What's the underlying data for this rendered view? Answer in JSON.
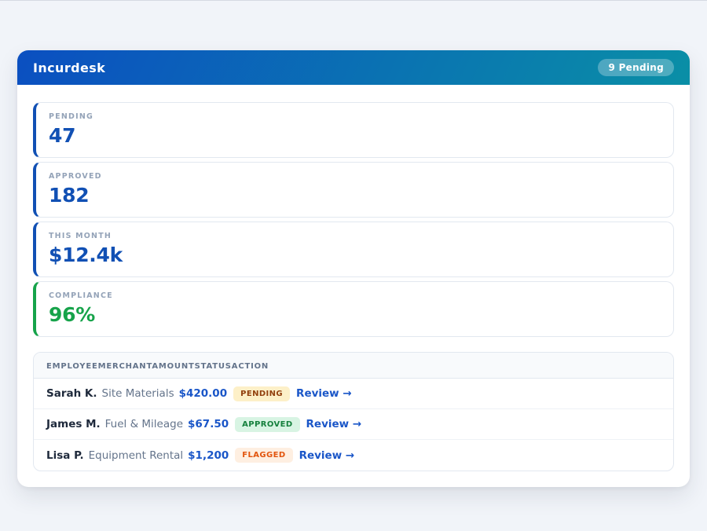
{
  "header": {
    "title": "Incurdesk",
    "pending_badge": "9 Pending"
  },
  "stats": [
    {
      "label": "PENDING",
      "value": "47",
      "accent": "#1150b4"
    },
    {
      "label": "APPROVED",
      "value": "182",
      "accent": "#1150b4"
    },
    {
      "label": "THIS MONTH",
      "value": "$12.4k",
      "accent": "#1150b4"
    },
    {
      "label": "COMPLIANCE",
      "value": "96%",
      "accent": "#16a34a"
    }
  ],
  "table": {
    "headers": [
      "EMPLOYEE",
      "MERCHANT",
      "AMOUNT",
      "STATUS",
      "ACTION"
    ],
    "rows": [
      {
        "employee": "Sarah K.",
        "merchant": "Site Materials",
        "amount": "$420.00",
        "status": "PENDING",
        "status_bg": "#fdf0c8",
        "status_color": "#92400e",
        "action": "Review →"
      },
      {
        "employee": "James M.",
        "merchant": "Fuel & Mileage",
        "amount": "$67.50",
        "status": "APPROVED",
        "status_bg": "#d8f4e3",
        "status_color": "#15803d",
        "action": "Review →"
      },
      {
        "employee": "Lisa P.",
        "merchant": "Equipment Rental",
        "amount": "$1,200",
        "status": "FLAGGED",
        "status_bg": "#feefe1",
        "status_color": "#e2550e",
        "action": "Review →"
      }
    ]
  },
  "colors": {
    "page_bg": "#f1f4f9",
    "header_gradient_from": "#0b4fc1",
    "header_gradient_to": "#0a8fa6",
    "amount_link": "#1a56c8",
    "stat_label": "#94a3b8",
    "employee_text": "#1e293b",
    "merchant_text": "#64748b"
  }
}
